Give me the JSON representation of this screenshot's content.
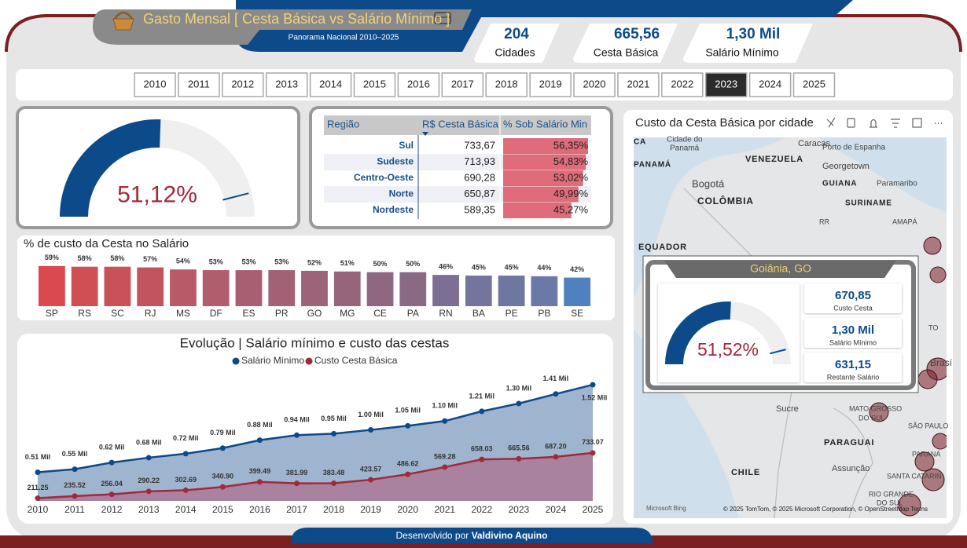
{
  "header": {
    "title": "Gasto Mensal [ Cesta Básica vs Salário Mínimo ]",
    "subtitle": "Panorama Nacional 2010–2025"
  },
  "kpis": [
    {
      "value": "204",
      "label": "Cidades"
    },
    {
      "value": "665,56",
      "label": "Cesta Básica"
    },
    {
      "value": "1,30 Mil",
      "label": "Salário Mínimo"
    }
  ],
  "years": {
    "items": [
      "2010",
      "2011",
      "2012",
      "2013",
      "2014",
      "2015",
      "2016",
      "2017",
      "2018",
      "2019",
      "2020",
      "2021",
      "2022",
      "2023",
      "2024",
      "2025"
    ],
    "selected": 13
  },
  "table": {
    "columns": [
      "Região",
      "R$ Cesta Básica",
      "% Sob Salário Min"
    ],
    "bar_color": "#e06b7a",
    "rows": [
      {
        "region": "Sul",
        "cesta": "733,67",
        "pct": 56.35,
        "pct_label": "56,35%"
      },
      {
        "region": "Sudeste",
        "cesta": "713,93",
        "pct": 54.83,
        "pct_label": "54,83%"
      },
      {
        "region": "Centro-Oeste",
        "cesta": "690,28",
        "pct": 53.02,
        "pct_label": "53,02%"
      },
      {
        "region": "Norte",
        "cesta": "650,87",
        "pct": 49.99,
        "pct_label": "49,99%"
      },
      {
        "region": "Nordeste",
        "cesta": "589,35",
        "pct": 45.27,
        "pct_label": "45,27%"
      }
    ]
  },
  "chart_data": [
    {
      "type": "gauge",
      "value": 51.12,
      "value_label": "51,12%",
      "target": 92,
      "ylim": [
        0,
        100
      ],
      "color": "#0d4a8a",
      "label_color": "#a3283a"
    },
    {
      "type": "bar",
      "title": "% de custo da Cesta no Salário",
      "categories": [
        "SP",
        "RS",
        "SC",
        "RJ",
        "MS",
        "DF",
        "ES",
        "PR",
        "GO",
        "MG",
        "CE",
        "PA",
        "RN",
        "BA",
        "PE",
        "PB",
        "SE"
      ],
      "values": [
        59,
        58,
        58,
        57,
        54,
        53,
        53,
        53,
        52,
        51,
        50,
        50,
        46,
        45,
        45,
        44,
        42
      ],
      "value_labels": [
        "59%",
        "58%",
        "58%",
        "57%",
        "54%",
        "53%",
        "53%",
        "53%",
        "52%",
        "51%",
        "50%",
        "50%",
        "46%",
        "45%",
        "45%",
        "44%",
        "42%"
      ],
      "colors": [
        "#d9494e",
        "#cf4f55",
        "#c9525a",
        "#c2545d",
        "#b85a68",
        "#b05d6d",
        "#a95f72",
        "#a26175",
        "#9c6379",
        "#96657d",
        "#8f6781",
        "#8a6985",
        "#7d6f93",
        "#74749c",
        "#6e77a2",
        "#6b79a8",
        "#4f80bf"
      ],
      "ylim": [
        0,
        60
      ]
    },
    {
      "type": "line",
      "title": "Evolução | Salário mínimo e custo das cestas",
      "categories": [
        "2010",
        "2011",
        "2012",
        "2013",
        "2014",
        "2015",
        "2016",
        "2017",
        "2018",
        "2019",
        "2020",
        "2021",
        "2022",
        "2023",
        "2024",
        "2025"
      ],
      "ylim": [
        180,
        1600
      ],
      "series": [
        {
          "name": "Salário Mínimo",
          "color": "#0d4a8a",
          "area": "#7f9bbd",
          "values": [
            510,
            545,
            622,
            678,
            724,
            788,
            880,
            937,
            954,
            998,
            1045,
            1100,
            1212,
            1302,
            1412,
            1518
          ],
          "value_labels": [
            "0.51 Mil",
            "0.55 Mil",
            "0.62 Mil",
            "0.68 Mil",
            "0.72 Mil",
            "0.79 Mil",
            "0.88 Mil",
            "0.94 Mil",
            "0.95 Mil",
            "1.00 Mil",
            "1.05 Mil",
            "1.10 Mil",
            "1.21 Mil",
            "1.30 Mil",
            "1.41 Mil",
            "1.52 Mil"
          ]
        },
        {
          "name": "Custo Cesta Básica",
          "color": "#a3283a",
          "area": "#b05a78",
          "values": [
            211.25,
            235.52,
            256.04,
            290.22,
            302.69,
            340.9,
            399.49,
            381.99,
            383.48,
            423.57,
            486.62,
            569.28,
            658.03,
            665.56,
            687.2,
            733.07
          ],
          "value_labels": [
            "211.25",
            "235.52",
            "256.04",
            "290.22",
            "302.69",
            "340.90",
            "399.49",
            "381.99",
            "383.48",
            "423.57",
            "486.62",
            "569.28",
            "658.03",
            "665.56",
            "687.20",
            "733.07"
          ]
        }
      ]
    },
    {
      "type": "gauge",
      "value": 51.52,
      "value_label": "51,52%",
      "target": 92,
      "ylim": [
        0,
        100
      ],
      "color": "#0d4a8a",
      "label_color": "#a3283a"
    }
  ],
  "map": {
    "title": "Custo da Cesta Básica por cidade",
    "labels": [
      "Cidade do",
      "Panamá",
      "CA",
      "PANAMÁ",
      "Caracas",
      "Porto de Espanha",
      "VENEZUELA",
      "Georgetown",
      "Bogotá",
      "GUIANA",
      "Paramaribo",
      "COLÔMBIA",
      "SURINAME",
      "RR",
      "AMAPÁ",
      "EQUADOR",
      "TO",
      "Brasí",
      "Sucre",
      "MATO GROSSO",
      "DO SUL",
      "SÃO PAULO",
      "PARAGUAI",
      "PARANÁ",
      "Assunção",
      "CHILE",
      "SANTA CATARIN",
      "RIO GRANDE",
      "DO SUL"
    ],
    "bing": "Microsoft Bing",
    "attribution": "© 2025 TomTom, © 2025 Microsoft Corporation, © OpenStreetMap  Terms",
    "popup": {
      "title": "Goiânia, GO",
      "cards": [
        {
          "value": "670,85",
          "label": "Custo Cesta"
        },
        {
          "value": "1,30 Mil",
          "label": "Salário Mínimo"
        },
        {
          "value": "631,15",
          "label": "Restante Salário"
        }
      ]
    }
  },
  "footer": {
    "prefix": "Desenvolvido por",
    "author": "Valdivino Aquino"
  }
}
